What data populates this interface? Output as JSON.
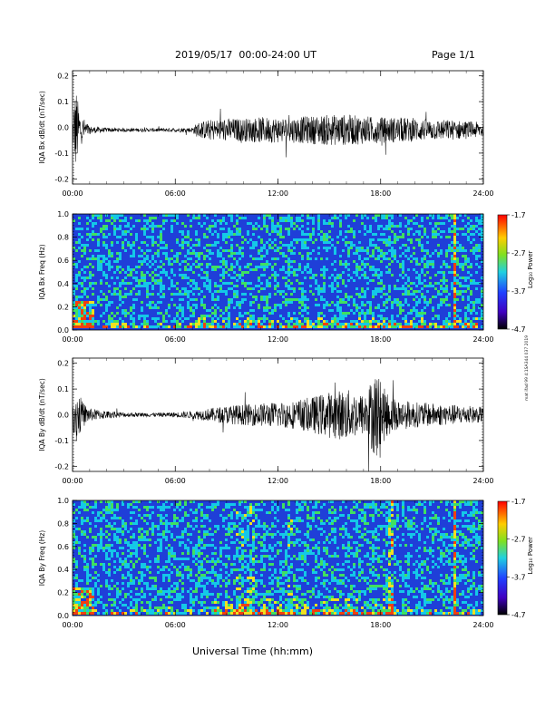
{
  "header": {
    "title": "2019/05/17  00:00-24:00 UT",
    "page": "Page 1/1"
  },
  "footer": {
    "x_axis_label": "Universal Time (hh:mm)"
  },
  "side_tag": "mat ifad 99 4:1SA344 037 2019",
  "colorbar": {
    "label": "Log₁₀ Power",
    "ticks": [
      "-1.7",
      "-2.7",
      "-3.7",
      "-4.7"
    ]
  },
  "colors": {
    "trace": "#000000",
    "spec_bg": "#1f3fd8",
    "spec_low": "#14c8e8",
    "spec_mid": "#40e060",
    "spec_high": "#f0e020",
    "spec_peak": "#f04010"
  },
  "chart_data": [
    {
      "type": "line",
      "id": "bx-dbdt",
      "ylabel": "IQA Bx dB/dt (nT/sec)",
      "x_ticks": [
        "00:00",
        "06:00",
        "12:00",
        "18:00",
        "24:00"
      ],
      "y_ticks": [
        "0.2",
        "0.1",
        "0.0",
        "-0.1",
        "-0.2"
      ],
      "xlim": [
        0,
        24
      ],
      "ylim": [
        -0.22,
        0.22
      ],
      "series": [
        {
          "x": [
            0,
            0.1,
            0.2,
            0.3,
            0.5,
            1,
            2,
            3,
            4,
            5,
            6,
            7,
            7.3,
            8,
            9,
            10,
            11,
            12,
            13,
            14,
            15,
            16,
            17,
            18,
            19,
            20,
            21,
            22,
            23,
            24
          ],
          "amplitude": [
            0.02,
            0.13,
            0.17,
            0.12,
            0.06,
            0.015,
            0.008,
            0.007,
            0.007,
            0.007,
            0.008,
            0.01,
            0.03,
            0.04,
            0.045,
            0.045,
            0.05,
            0.05,
            0.05,
            0.055,
            0.06,
            0.06,
            0.055,
            0.05,
            0.05,
            0.045,
            0.04,
            0.04,
            0.035,
            0.03
          ],
          "offset": -0.01
        }
      ]
    },
    {
      "type": "heatmap",
      "id": "bx-freq",
      "ylabel": "IQA Bx Freq (Hz)",
      "x_ticks": [
        "00:00",
        "06:00",
        "12:00",
        "18:00",
        "24:00"
      ],
      "y_ticks": [
        "1.0",
        "0.8",
        "0.6",
        "0.4",
        "0.2",
        "0.0"
      ],
      "xlim": [
        0,
        24
      ],
      "ylim": [
        0,
        1.0
      ],
      "log_power_range": [
        -4.7,
        -1.7
      ]
    },
    {
      "type": "line",
      "id": "by-dbdt",
      "ylabel": "IQA By dB/dt (nT/sec)",
      "x_ticks": [
        "00:00",
        "06:00",
        "12:00",
        "18:00",
        "24:00"
      ],
      "y_ticks": [
        "0.2",
        "0.1",
        "0.0",
        "-0.1",
        "-0.2"
      ],
      "xlim": [
        0,
        24
      ],
      "ylim": [
        -0.22,
        0.22
      ],
      "series": [
        {
          "x": [
            0,
            0.1,
            0.2,
            0.4,
            0.6,
            1,
            2,
            3,
            4,
            5,
            6,
            7,
            8,
            9,
            10,
            11,
            12,
            13,
            14,
            15,
            16,
            17,
            17.8,
            18,
            18.5,
            19,
            20,
            21,
            22,
            23,
            24
          ],
          "amplitude": [
            0.02,
            0.1,
            0.12,
            0.08,
            0.05,
            0.025,
            0.015,
            0.01,
            0.008,
            0.008,
            0.01,
            0.015,
            0.025,
            0.035,
            0.04,
            0.045,
            0.05,
            0.055,
            0.07,
            0.09,
            0.1,
            0.08,
            0.18,
            0.12,
            0.08,
            0.06,
            0.05,
            0.045,
            0.04,
            0.035,
            0.03
          ],
          "offset": 0.0
        }
      ]
    },
    {
      "type": "heatmap",
      "id": "by-freq",
      "ylabel": "IQA By Freq (Hz)",
      "x_ticks": [
        "00:00",
        "06:00",
        "12:00",
        "18:00",
        "24:00"
      ],
      "y_ticks": [
        "1.0",
        "0.8",
        "0.6",
        "0.4",
        "0.2",
        "0.0"
      ],
      "xlim": [
        0,
        24
      ],
      "ylim": [
        0,
        1.0
      ],
      "log_power_range": [
        -4.7,
        -1.7
      ]
    }
  ]
}
